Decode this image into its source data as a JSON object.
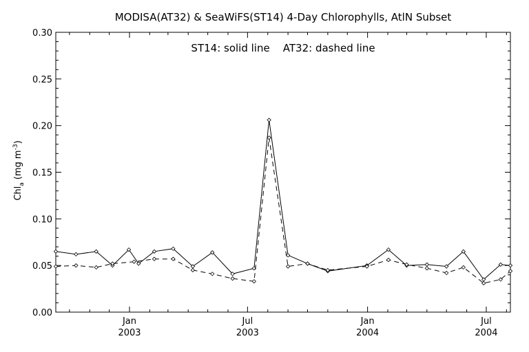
{
  "chart_data": {
    "type": "line",
    "title": "MODISA(AT32) & SeaWiFS(ST14) 4-Day Chlorophylls, AtlN Subset",
    "annotation": "ST14: solid line    AT32: dashed line",
    "ylabel": "Chl a (mg m^-3)",
    "ylabel_parts": {
      "main": "Chl",
      "sub": "a",
      "unit": "(mg m",
      "sup": "-3",
      "close": ")"
    },
    "ylim": [
      0.0,
      0.3
    ],
    "yticks": [
      "0.00",
      "0.05",
      "0.10",
      "0.15",
      "0.20",
      "0.25",
      "0.30"
    ],
    "xlim": [
      "2002-09-10",
      "2004-08-07"
    ],
    "xticks": [
      {
        "date": "2003-01-01",
        "line1": "Jan",
        "line2": "2003"
      },
      {
        "date": "2003-07-01",
        "line1": "Jul",
        "line2": "2003"
      },
      {
        "date": "2004-01-01",
        "line1": "Jan",
        "line2": "2004"
      },
      {
        "date": "2004-07-01",
        "line1": "Jul",
        "line2": "2004"
      }
    ],
    "minor_ticks": [
      "2002-10-01",
      "2002-11-01",
      "2002-12-01",
      "2003-02-01",
      "2003-03-01",
      "2003-04-01",
      "2003-05-01",
      "2003-06-01",
      "2003-08-01",
      "2003-09-01",
      "2003-10-01",
      "2003-11-01",
      "2003-12-01",
      "2004-02-01",
      "2004-03-01",
      "2004-04-01",
      "2004-05-01",
      "2004-06-01",
      "2004-08-01"
    ],
    "grid": false,
    "series": [
      {
        "name": "ST14",
        "style": "solid",
        "x": [
          "2002-09-10",
          "2002-10-11",
          "2002-11-11",
          "2002-12-06",
          "2002-12-31",
          "2003-01-15",
          "2003-02-08",
          "2003-03-09",
          "2003-04-08",
          "2003-05-08",
          "2003-06-08",
          "2003-07-11",
          "2003-08-03",
          "2003-09-01",
          "2003-10-01",
          "2003-11-01",
          "2003-12-31",
          "2004-02-02",
          "2004-03-01",
          "2004-04-01",
          "2004-05-01",
          "2004-05-27",
          "2004-06-27",
          "2004-07-23",
          "2004-08-07"
        ],
        "values": [
          0.065,
          0.062,
          0.065,
          0.05,
          0.067,
          0.052,
          0.065,
          0.068,
          0.049,
          0.064,
          0.041,
          0.047,
          0.206,
          0.061,
          0.052,
          0.044,
          0.05,
          0.067,
          0.05,
          0.051,
          0.049,
          0.065,
          0.035,
          0.051,
          0.05
        ]
      },
      {
        "name": "AT32",
        "style": "dashed",
        "x": [
          "2002-09-10",
          "2002-10-11",
          "2002-11-11",
          "2002-12-06",
          "2003-01-08",
          "2003-02-08",
          "2003-03-09",
          "2003-04-08",
          "2003-05-08",
          "2003-06-08",
          "2003-07-11",
          "2003-08-03",
          "2003-09-01",
          "2003-10-01",
          "2003-11-01",
          "2003-12-31",
          "2004-02-02",
          "2004-03-01",
          "2004-04-01",
          "2004-05-01",
          "2004-05-27",
          "2004-06-27",
          "2004-07-23",
          "2004-08-07"
        ],
        "values": [
          0.049,
          0.05,
          0.048,
          0.052,
          0.054,
          0.057,
          0.057,
          0.045,
          0.041,
          0.036,
          0.033,
          0.187,
          0.049,
          0.052,
          0.045,
          0.049,
          0.056,
          0.051,
          0.047,
          0.042,
          0.048,
          0.031,
          0.035,
          0.044
        ]
      }
    ]
  }
}
